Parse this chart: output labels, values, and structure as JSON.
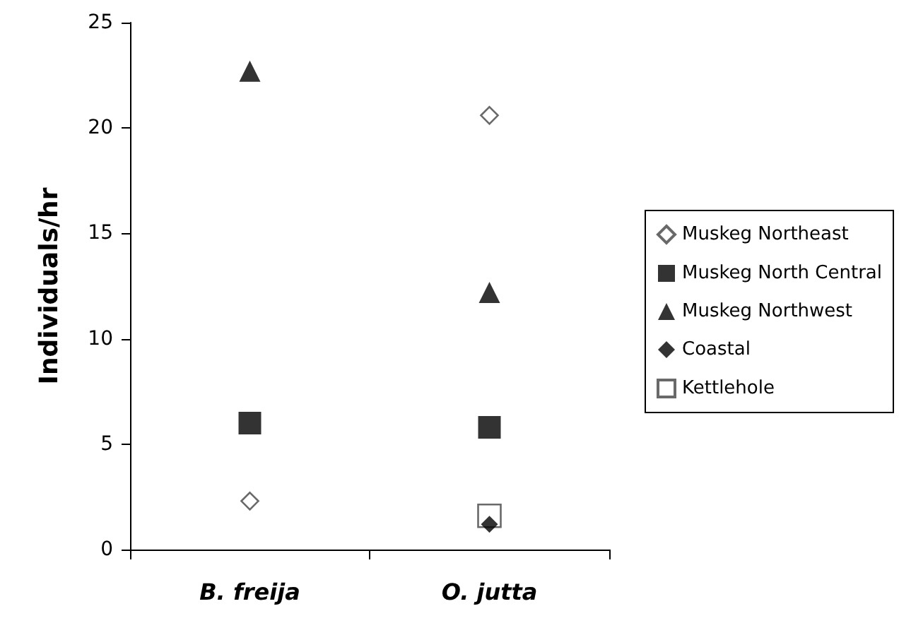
{
  "chart_data": {
    "type": "scatter",
    "ylabel": "Individuals/hr",
    "categories": [
      "B. freija",
      "O. jutta"
    ],
    "series": [
      {
        "name": "Muskeg Northeast",
        "color": "#ffffff",
        "marker": "diamond",
        "values": [
          2.3,
          20.6
        ]
      },
      {
        "name": "Muskeg North Central",
        "color": "#000000",
        "marker": "square",
        "values": [
          6.0,
          5.8
        ]
      },
      {
        "name": "Muskeg Northwest",
        "color": "#000000",
        "marker": "triangle",
        "values": [
          22.7,
          12.2
        ]
      },
      {
        "name": "Coastal",
        "color": "#000000",
        "marker": "diamond",
        "values": [
          null,
          1.2
        ]
      },
      {
        "name": "Kettlehole",
        "color": "#ffffff",
        "marker": "square",
        "values": [
          null,
          1.6
        ]
      }
    ],
    "ylim": [
      0,
      25
    ],
    "yticks": [
      0,
      5,
      10,
      15,
      20,
      25
    ],
    "grid": false,
    "legend": "right"
  }
}
